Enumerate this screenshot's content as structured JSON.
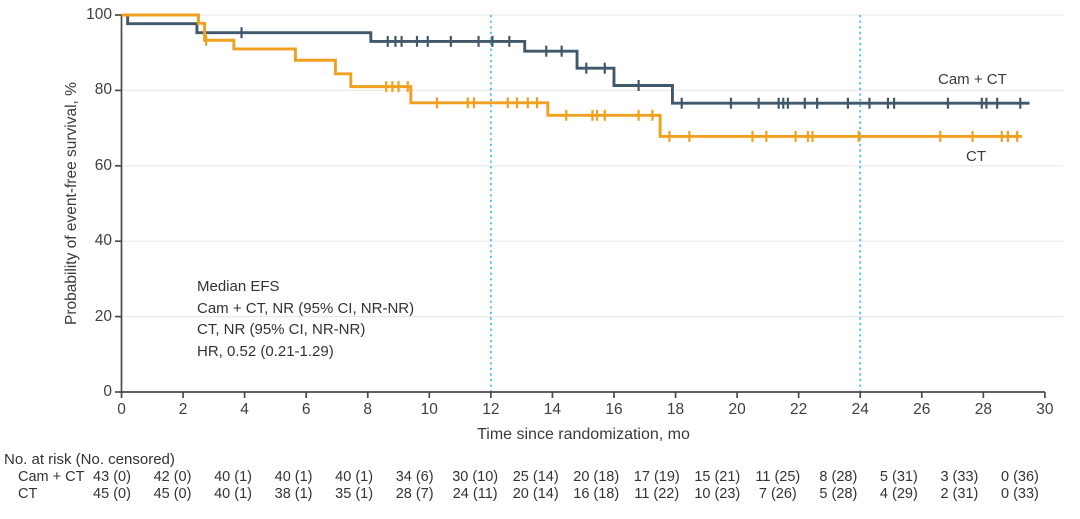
{
  "chart_data": {
    "type": "line",
    "subtype": "kaplan-meier-step-curves",
    "title": "",
    "xlabel": "Time since randomization, mo",
    "ylabel": "Probability of event-free survival, %",
    "xlim": [
      0,
      30
    ],
    "ylim": [
      0,
      100
    ],
    "xticks": [
      0,
      2,
      4,
      6,
      8,
      10,
      12,
      14,
      16,
      18,
      20,
      22,
      24,
      26,
      28,
      30
    ],
    "yticks": [
      0,
      20,
      40,
      60,
      80,
      100
    ],
    "grid": "horizontal",
    "grid_color": "#e9e9e9",
    "axis_color": "#4a4a4a",
    "reference_lines_x": [
      12,
      24
    ],
    "reference_line_color": "#4cc0e8",
    "annotation": {
      "lines": [
        "Median EFS",
        "Cam + CT, NR (95% CI, NR-NR)",
        "CT, NR (95% CI, NR-NR)",
        "HR, 0.52 (0.21-1.29)"
      ]
    },
    "series": [
      {
        "name": "Cam + CT",
        "label": "Cam + CT",
        "color": "#41586a",
        "steps": [
          [
            0,
            100
          ],
          [
            0.2,
            97.7
          ],
          [
            2.45,
            95.3
          ],
          [
            8.1,
            93.0
          ],
          [
            13.1,
            90.4
          ],
          [
            14.8,
            85.9
          ],
          [
            16.0,
            81.3
          ],
          [
            17.9,
            76.6
          ]
        ],
        "end_time": 29.5,
        "censor_times": [
          3.9,
          8.65,
          8.9,
          9.1,
          9.6,
          9.95,
          10.7,
          11.6,
          12.05,
          12.6,
          13.8,
          14.3,
          15.1,
          15.7,
          16.8,
          18.2,
          19.8,
          20.7,
          21.35,
          21.5,
          21.65,
          22.2,
          22.6,
          23.6,
          24.3,
          24.9,
          25.1,
          26.85,
          27.95,
          28.1,
          28.45,
          29.2
        ]
      },
      {
        "name": "CT",
        "label": "CT",
        "color": "#f0a01e",
        "steps": [
          [
            0,
            100
          ],
          [
            2.5,
            97.8
          ],
          [
            2.7,
            93.3
          ],
          [
            3.65,
            91.0
          ],
          [
            5.65,
            88.0
          ],
          [
            6.95,
            84.4
          ],
          [
            7.45,
            81.0
          ],
          [
            9.4,
            76.7
          ],
          [
            13.85,
            73.4
          ],
          [
            17.5,
            67.8
          ]
        ],
        "end_time": 29.25,
        "censor_times": [
          2.75,
          8.6,
          8.8,
          9.0,
          9.3,
          10.25,
          11.25,
          11.45,
          12.55,
          12.85,
          13.2,
          13.5,
          14.45,
          15.3,
          15.45,
          15.7,
          16.8,
          17.25,
          17.8,
          18.45,
          20.5,
          20.95,
          21.9,
          22.3,
          22.45,
          23.95,
          26.6,
          27.65,
          28.6,
          28.8,
          29.1
        ]
      }
    ]
  },
  "risk_table": {
    "header": "No. at risk (No. censored)",
    "time_points": [
      0,
      2,
      4,
      6,
      8,
      10,
      12,
      14,
      16,
      18,
      20,
      22,
      24,
      26,
      28,
      30
    ],
    "rows": [
      {
        "label": "Cam + CT",
        "values": [
          "43 (0)",
          "42 (0)",
          "40 (1)",
          "40 (1)",
          "40 (1)",
          "34 (6)",
          "30 (10)",
          "25 (14)",
          "20 (18)",
          "17 (19)",
          "15 (21)",
          "11 (25)",
          "8 (28)",
          "5 (31)",
          "3 (33)",
          "0 (36)"
        ]
      },
      {
        "label": "CT",
        "values": [
          "45 (0)",
          "45 (0)",
          "40 (1)",
          "38 (1)",
          "35 (1)",
          "28 (7)",
          "24 (11)",
          "20 (14)",
          "16 (18)",
          "11 (22)",
          "10 (23)",
          "7 (26)",
          "5 (28)",
          "4 (29)",
          "2 (31)",
          "0 (33)"
        ]
      }
    ]
  }
}
